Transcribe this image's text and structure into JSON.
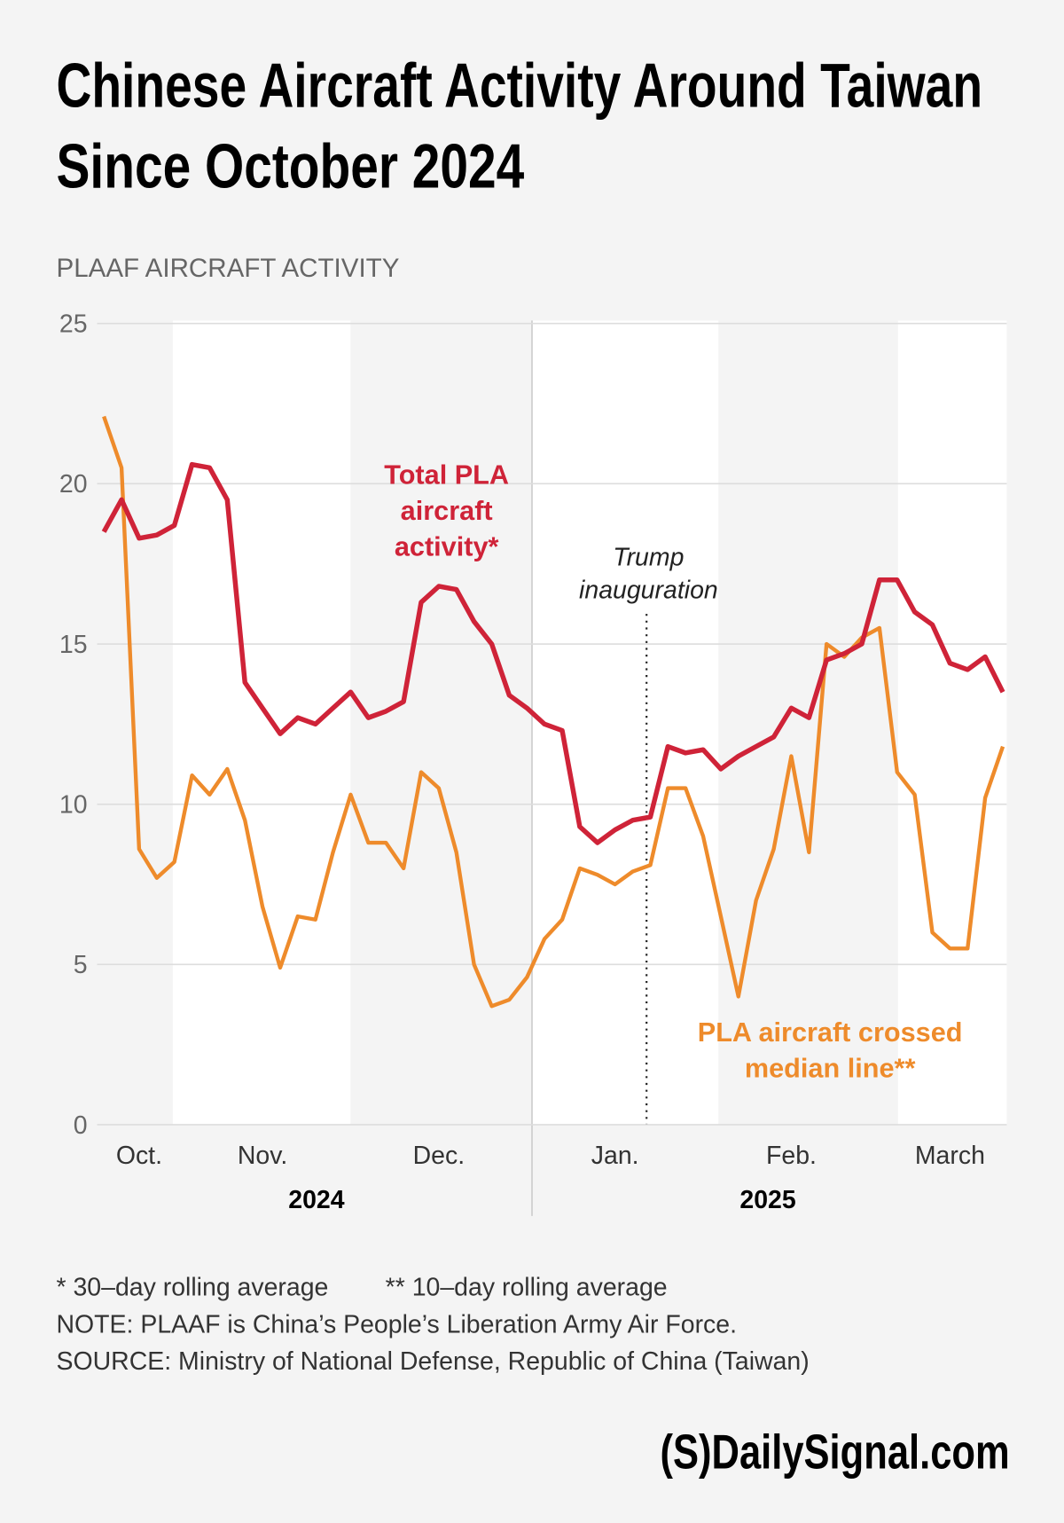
{
  "chart_data": {
    "type": "line",
    "title": [
      "Chinese Aircraft Activity Around Taiwan",
      "Since October 2024"
    ],
    "y_label": "PLAAF AIRCRAFT ACTIVITY",
    "categories": [
      null,
      null,
      "Oct.",
      null,
      null,
      null,
      null,
      null,
      null,
      "Nov.",
      null,
      null,
      null,
      null,
      null,
      null,
      null,
      null,
      null,
      "Dec.",
      null,
      null,
      null,
      null,
      null,
      null,
      null,
      null,
      null,
      "Jan.",
      null,
      null,
      null,
      null,
      null,
      null,
      null,
      null,
      null,
      "Feb.",
      null,
      null,
      null,
      null,
      null,
      null,
      null,
      null,
      "March",
      null,
      null,
      null
    ],
    "years": [
      "2024",
      "2025"
    ],
    "series": [
      {
        "name": "Total PLA aircraft activity*",
        "color": "#cf2338",
        "values": [
          18.5,
          19.5,
          18.3,
          18.4,
          18.7,
          20.6,
          20.5,
          19.5,
          13.8,
          13.0,
          12.2,
          12.7,
          12.5,
          13.0,
          13.5,
          12.7,
          12.9,
          13.2,
          16.3,
          16.8,
          16.7,
          15.7,
          15.0,
          13.4,
          13.0,
          12.5,
          12.3,
          9.3,
          8.8,
          9.2,
          9.5,
          9.6,
          11.8,
          11.6,
          11.7,
          11.1,
          11.5,
          11.8,
          12.1,
          13.0,
          12.7,
          14.5,
          14.7,
          15.0,
          17.0,
          17.0,
          16.0,
          15.6,
          14.4,
          14.2,
          14.6,
          13.5
        ]
      },
      {
        "name": "PLA aircraft crossed median line**",
        "color": "#ee8b2b",
        "values": [
          22.1,
          20.5,
          8.6,
          7.7,
          8.2,
          10.9,
          10.3,
          11.1,
          9.5,
          6.8,
          4.9,
          6.5,
          6.4,
          8.5,
          10.3,
          8.8,
          8.8,
          8.0,
          11.0,
          10.5,
          8.5,
          5.0,
          3.7,
          3.9,
          4.6,
          5.8,
          6.4,
          8.0,
          7.8,
          7.5,
          7.9,
          8.1,
          10.5,
          10.5,
          9.0,
          6.5,
          4.0,
          7.0,
          8.6,
          11.5,
          8.5,
          15.0,
          14.6,
          15.2,
          15.5,
          11.0,
          10.3,
          6.0,
          5.5,
          5.5,
          10.2,
          11.8
        ]
      }
    ],
    "annotation": "Trump inauguration",
    "ylim": [
      0,
      25
    ],
    "yticks": [
      0,
      5,
      10,
      15,
      20,
      25
    ],
    "grid": true,
    "footnotes": [
      "* 30–day rolling average",
      "** 10–day rolling average",
      "NOTE: PLAAF is China’s People’s Liberation Army Air Force.",
      "SOURCE: Ministry of National Defense, Republic of China (Taiwan)"
    ],
    "logo": "(S)DailySignal.com"
  }
}
